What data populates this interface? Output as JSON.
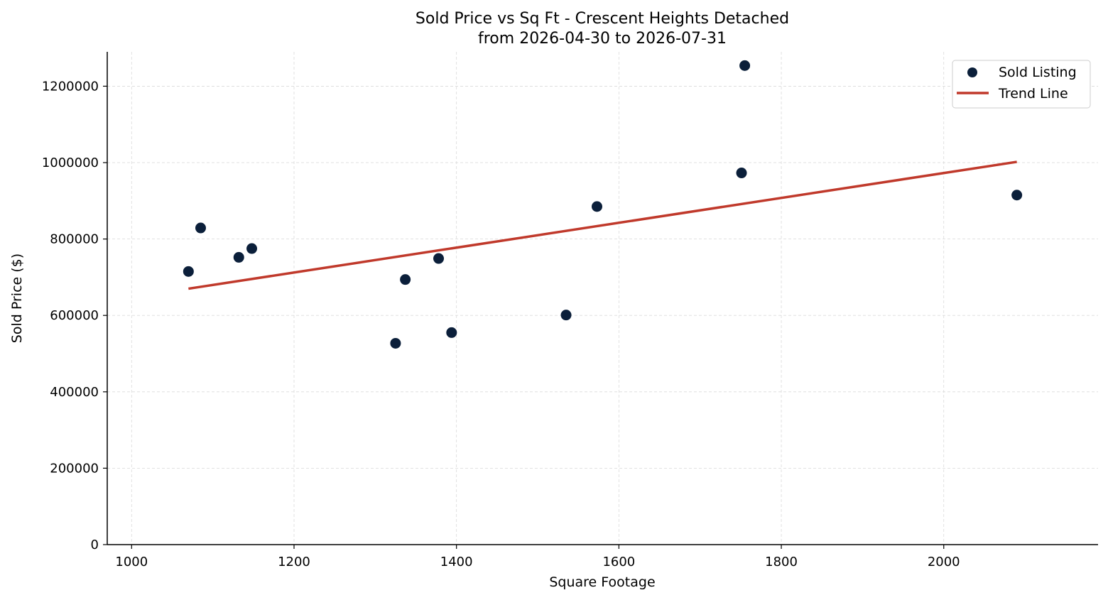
{
  "chart_data": {
    "type": "scatter",
    "title": "Sold Price vs Sq Ft - Crescent Heights Detached",
    "subtitle": "from 2026-04-30 to 2026-07-31",
    "xlabel": "Square Footage",
    "ylabel": "Sold Price ($)",
    "xlim": [
      970,
      2190
    ],
    "ylim": [
      0,
      1290000
    ],
    "x_ticks": [
      1000,
      1200,
      1400,
      1600,
      1800,
      2000
    ],
    "y_ticks": [
      0,
      200000,
      400000,
      600000,
      800000,
      1000000,
      1200000
    ],
    "x_tick_labels": [
      "1000",
      "1200",
      "1400",
      "1600",
      "1800",
      "2000"
    ],
    "y_tick_labels": [
      "0",
      "200000",
      "400000",
      "600000",
      "800000",
      "1000000",
      "1200000"
    ],
    "grid": true,
    "legend_position": "top-right",
    "series": [
      {
        "name": "Sold Listing",
        "kind": "scatter",
        "color": "#0b1f3a",
        "points": [
          {
            "x": 1070,
            "y": 715000
          },
          {
            "x": 1085,
            "y": 829000
          },
          {
            "x": 1132,
            "y": 752000
          },
          {
            "x": 1148,
            "y": 775000
          },
          {
            "x": 1325,
            "y": 527000
          },
          {
            "x": 1337,
            "y": 694000
          },
          {
            "x": 1378,
            "y": 749000
          },
          {
            "x": 1394,
            "y": 555000
          },
          {
            "x": 1535,
            "y": 601000
          },
          {
            "x": 1573,
            "y": 885000
          },
          {
            "x": 1751,
            "y": 973000
          },
          {
            "x": 1755,
            "y": 1254000
          },
          {
            "x": 2090,
            "y": 915000
          }
        ]
      },
      {
        "name": "Trend Line",
        "kind": "line",
        "color": "#c0392b",
        "points": [
          {
            "x": 1070,
            "y": 670000
          },
          {
            "x": 2090,
            "y": 1002000
          }
        ]
      }
    ]
  }
}
